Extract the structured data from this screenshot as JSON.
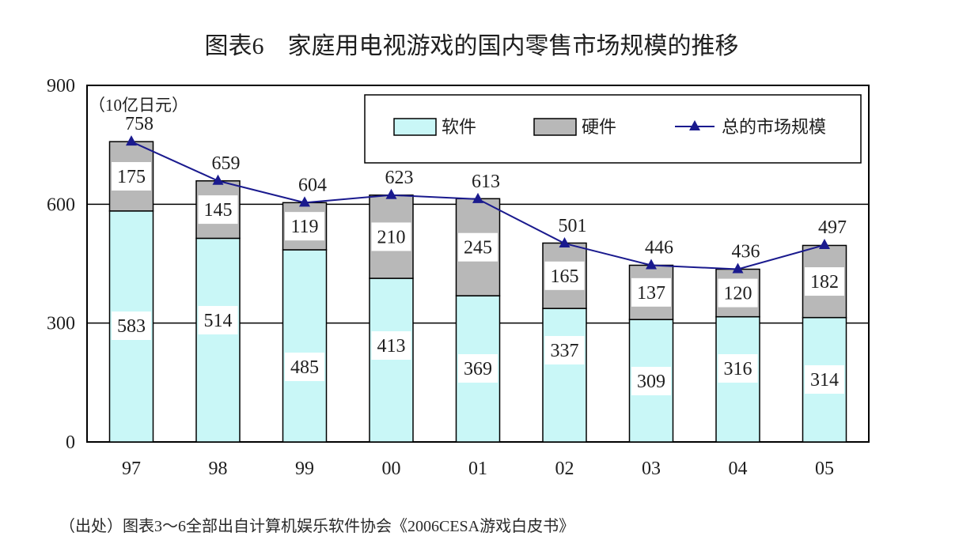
{
  "chart_data": {
    "type": "bar",
    "stacked": true,
    "title": "图表6　家庭用电视游戏的国内零售市场规模的推移",
    "xlabel": "",
    "ylabel": "（10亿日元）",
    "categories": [
      "97",
      "98",
      "99",
      "00",
      "01",
      "02",
      "03",
      "04",
      "05"
    ],
    "ylim": [
      0,
      900
    ],
    "yticks": [
      0,
      300,
      600,
      900
    ],
    "grid": true,
    "legend": "top-right",
    "series": [
      {
        "name": "软件",
        "type": "bar",
        "color": "#c9f7f7",
        "values": [
          583,
          514,
          485,
          413,
          369,
          337,
          309,
          316,
          314
        ]
      },
      {
        "name": "硬件",
        "type": "bar",
        "color": "#b8b8b8",
        "values": [
          175,
          145,
          119,
          210,
          245,
          165,
          137,
          120,
          182
        ]
      },
      {
        "name": "总的市场规模",
        "type": "line",
        "color": "#1a1a8e",
        "values": [
          758,
          659,
          604,
          623,
          613,
          501,
          446,
          436,
          497
        ]
      }
    ]
  },
  "footnote": "（出处）图表3～6全部出自计算机娱乐软件协会《2006CESA游戏白皮书》"
}
